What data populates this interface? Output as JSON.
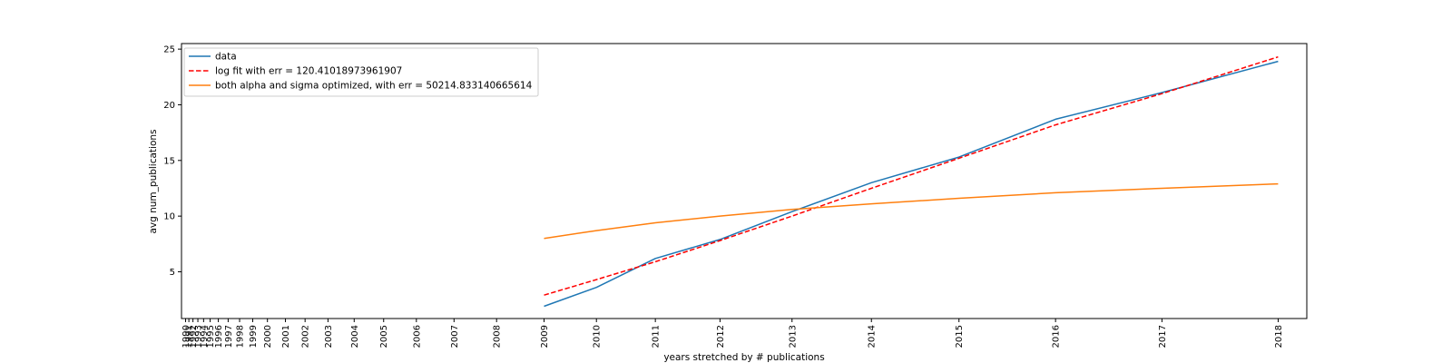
{
  "chart_data": {
    "type": "line",
    "xlabel": "years stretched by # publications",
    "ylabel": "avg num_publications",
    "x_ticks": [
      "1990",
      "1991",
      "1992",
      "1993",
      "1994",
      "1995",
      "1996",
      "1997",
      "1998",
      "1999",
      "2000",
      "2001",
      "2002",
      "2003",
      "2004",
      "2005",
      "2006",
      "2007",
      "2008",
      "2009",
      "2010",
      "2011",
      "2012",
      "2013",
      "2014",
      "2015",
      "2016",
      "2017",
      "2018"
    ],
    "x_tick_positions": [
      0,
      4,
      9,
      15,
      22,
      30,
      40,
      52,
      66,
      82,
      100,
      122,
      146,
      174,
      206,
      242,
      282,
      328,
      380,
      438,
      502,
      574,
      653,
      741,
      838,
      945,
      1063,
      1193,
      1335
    ],
    "x_range": [
      -5,
      1370
    ],
    "y_ticks": [
      5,
      10,
      15,
      20,
      25
    ],
    "ylim": [
      0.8,
      25.5
    ],
    "legend_position": "top-left",
    "series": [
      {
        "name": "data",
        "color": "#1f77b4",
        "style": "solid",
        "x": [
          438,
          502,
          574,
          653,
          741,
          838,
          945,
          1063,
          1193,
          1335
        ],
        "values": [
          1.9,
          3.6,
          6.2,
          7.9,
          10.4,
          13.0,
          15.3,
          18.7,
          21.1,
          23.9
        ]
      },
      {
        "name": "log fit with err = 120.41018973961907",
        "color": "#ff0000",
        "style": "dashed",
        "x": [
          438,
          502,
          574,
          653,
          741,
          838,
          945,
          1063,
          1193,
          1335
        ],
        "values": [
          2.9,
          4.3,
          5.9,
          7.8,
          10.0,
          12.5,
          15.2,
          18.2,
          21.0,
          24.3
        ]
      },
      {
        "name": "both alpha and sigma optimized, with err = 50214.833140665614",
        "color": "#ff7f0e",
        "style": "solid",
        "x": [
          438,
          502,
          574,
          653,
          741,
          838,
          945,
          1063,
          1193,
          1335
        ],
        "values": [
          8.0,
          8.7,
          9.4,
          10.0,
          10.6,
          11.1,
          11.6,
          12.1,
          12.5,
          12.9
        ]
      }
    ]
  }
}
